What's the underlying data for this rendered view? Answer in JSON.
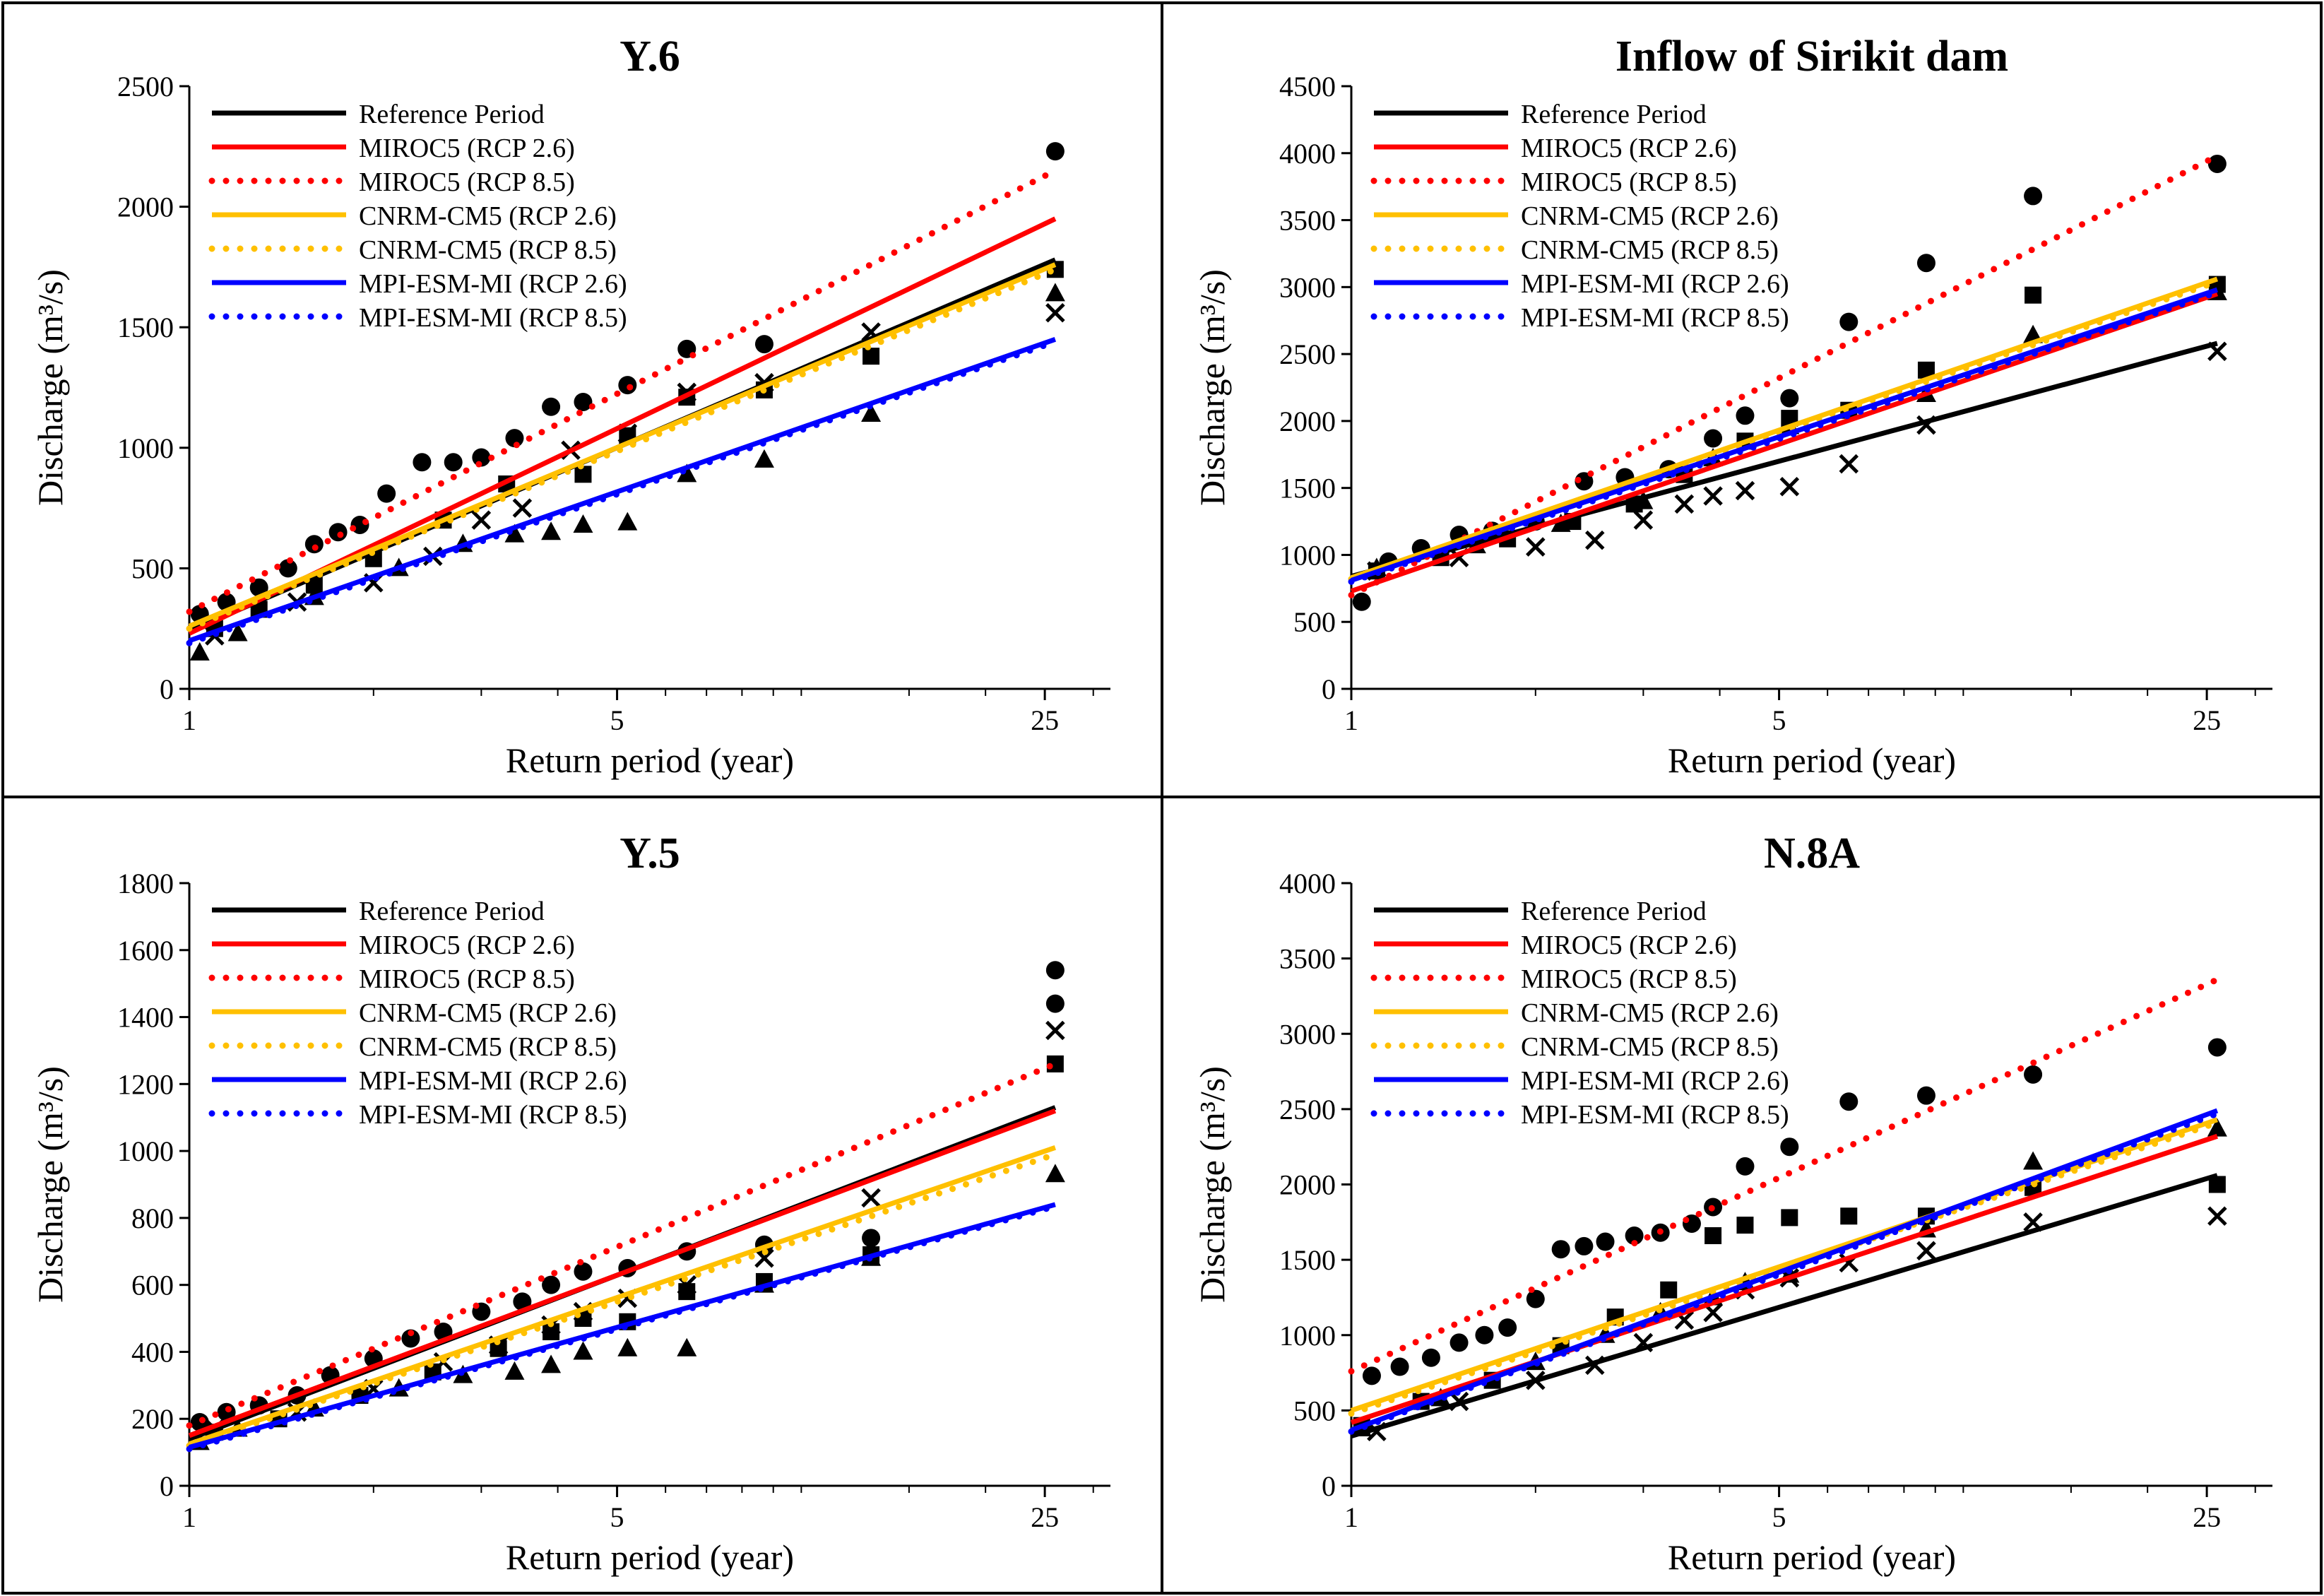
{
  "palette": {
    "reference": "#000000",
    "miroc5": "#ff0000",
    "cnrm": "#ffc000",
    "mpi": "#0000ff",
    "points": "#000000"
  },
  "legend_entries": [
    {
      "label": "Reference Period",
      "color": "#000000",
      "dotted": false
    },
    {
      "label": "MIROC5 (RCP 2.6)",
      "color": "#ff0000",
      "dotted": false
    },
    {
      "label": "MIROC5 (RCP 8.5)",
      "color": "#ff0000",
      "dotted": true
    },
    {
      "label": "CNRM-CM5 (RCP 2.6)",
      "color": "#ffc000",
      "dotted": false
    },
    {
      "label": "CNRM-CM5 (RCP 8.5)",
      "color": "#ffc000",
      "dotted": true
    },
    {
      "label": "MPI-ESM-MI (RCP 2.6)",
      "color": "#0000ff",
      "dotted": false
    },
    {
      "label": "MPI-ESM-MI (RCP 8.5)",
      "color": "#0000ff",
      "dotted": true
    }
  ],
  "chart_data": [
    {
      "type": "scatter",
      "title": "Y.6",
      "xlabel": "Return period (year)",
      "ylabel": "Discharge (m³/s)",
      "x_scale": "log",
      "x_ticks": [
        1,
        5,
        25
      ],
      "xlim": [
        1,
        32
      ],
      "ylim": [
        0,
        2500
      ],
      "y_ticks": [
        0,
        500,
        1000,
        1500,
        2000,
        2500
      ],
      "legend": "top-left",
      "grid": false,
      "trend_lines": [
        {
          "name": "Reference Period",
          "x": [
            1,
            26
          ],
          "y": [
            240,
            1780
          ]
        },
        {
          "name": "MIROC5 (RCP 2.6)",
          "x": [
            1,
            26
          ],
          "y": [
            230,
            1950
          ]
        },
        {
          "name": "MIROC5 (RCP 8.5)",
          "x": [
            1,
            26
          ],
          "y": [
            320,
            2150
          ]
        },
        {
          "name": "CNRM-CM5 (RCP 2.6)",
          "x": [
            1,
            26
          ],
          "y": [
            260,
            1760
          ]
        },
        {
          "name": "CNRM-CM5 (RCP 8.5)",
          "x": [
            1,
            26
          ],
          "y": [
            250,
            1740
          ]
        },
        {
          "name": "MPI-ESM-MI (RCP 2.6)",
          "x": [
            1,
            26
          ],
          "y": [
            200,
            1450
          ]
        },
        {
          "name": "MPI-ESM-MI (RCP 8.5)",
          "x": [
            1,
            26
          ],
          "y": [
            190,
            1440
          ]
        }
      ],
      "observations": [
        {
          "marker": "circle",
          "x": [
            1.04,
            1.15,
            1.3,
            1.45,
            1.6,
            1.75,
            1.9,
            2.1,
            2.4,
            2.7,
            3.0,
            3.4,
            3.9,
            4.4,
            5.2,
            6.5,
            8.7,
            26
          ],
          "y": [
            310,
            360,
            420,
            500,
            600,
            650,
            680,
            810,
            940,
            940,
            960,
            1040,
            1170,
            1190,
            1260,
            1410,
            1430,
            2230
          ]
        },
        {
          "marker": "square",
          "x": [
            1.1,
            1.3,
            1.6,
            2.0,
            2.6,
            3.3,
            4.4,
            5.2,
            6.5,
            8.7,
            13,
            26
          ],
          "y": [
            250,
            330,
            430,
            540,
            700,
            850,
            890,
            1050,
            1210,
            1240,
            1380,
            1740
          ]
        },
        {
          "marker": "triangle",
          "x": [
            1.04,
            1.2,
            1.6,
            2.2,
            2.8,
            3.4,
            3.9,
            4.4,
            5.2,
            6.5,
            8.7,
            13,
            26
          ],
          "y": [
            150,
            230,
            380,
            500,
            600,
            640,
            650,
            680,
            690,
            890,
            950,
            1140,
            1640
          ]
        },
        {
          "marker": "cross",
          "x": [
            1.1,
            1.5,
            2.0,
            2.5,
            3.0,
            3.5,
            4.2,
            5.2,
            6.5,
            8.7,
            13,
            26
          ],
          "y": [
            220,
            360,
            440,
            550,
            700,
            750,
            990,
            1060,
            1230,
            1270,
            1480,
            1560
          ]
        }
      ]
    },
    {
      "type": "scatter",
      "title": "Inflow of Sirikit dam",
      "xlabel": "Return period (year)",
      "ylabel": "Discharge (m³/s)",
      "x_scale": "log",
      "x_ticks": [
        1,
        5,
        25
      ],
      "xlim": [
        1,
        32
      ],
      "ylim": [
        0,
        4500
      ],
      "y_ticks": [
        0,
        500,
        1000,
        1500,
        2000,
        2500,
        3000,
        3500,
        4000,
        4500
      ],
      "legend": "top-left",
      "grid": false,
      "trend_lines": [
        {
          "name": "Reference Period",
          "x": [
            1,
            26
          ],
          "y": [
            840,
            2580
          ]
        },
        {
          "name": "MIROC5 (RCP 2.6)",
          "x": [
            1,
            26
          ],
          "y": [
            730,
            2950
          ]
        },
        {
          "name": "MIROC5 (RCP 8.5)",
          "x": [
            1,
            26
          ],
          "y": [
            700,
            3980
          ]
        },
        {
          "name": "CNRM-CM5 (RCP 2.6)",
          "x": [
            1,
            26
          ],
          "y": [
            830,
            3060
          ]
        },
        {
          "name": "CNRM-CM5 (RCP 8.5)",
          "x": [
            1,
            26
          ],
          "y": [
            820,
            3040
          ]
        },
        {
          "name": "MPI-ESM-MI (RCP 2.6)",
          "x": [
            1,
            26
          ],
          "y": [
            810,
            2980
          ]
        },
        {
          "name": "MPI-ESM-MI (RCP 8.5)",
          "x": [
            1,
            26
          ],
          "y": [
            800,
            2960
          ]
        }
      ],
      "observations": [
        {
          "marker": "circle",
          "x": [
            1.04,
            1.15,
            1.3,
            1.5,
            1.7,
            2.0,
            2.4,
            2.8,
            3.3,
            3.9,
            4.4,
            5.2,
            6.5,
            8.7,
            13,
            26
          ],
          "y": [
            650,
            950,
            1050,
            1150,
            1180,
            1250,
            1550,
            1580,
            1640,
            1870,
            2040,
            2170,
            2740,
            3180,
            3680,
            3920
          ]
        },
        {
          "marker": "square",
          "x": [
            1.1,
            1.4,
            1.8,
            2.3,
            2.9,
            3.5,
            4.4,
            5.2,
            6.5,
            8.7,
            13,
            26
          ],
          "y": [
            880,
            980,
            1120,
            1250,
            1380,
            1600,
            1850,
            2020,
            2080,
            2380,
            2940,
            3020
          ]
        },
        {
          "marker": "triangle",
          "x": [
            1.1,
            1.6,
            2.2,
            3.0,
            3.9,
            5.2,
            8.7,
            13,
            26
          ],
          "y": [
            900,
            1070,
            1230,
            1400,
            1720,
            1960,
            2200,
            2640,
            2960
          ]
        },
        {
          "marker": "cross",
          "x": [
            1.1,
            1.5,
            2.0,
            2.5,
            3.0,
            3.5,
            3.9,
            4.4,
            5.2,
            6.5,
            8.7,
            26
          ],
          "y": [
            880,
            980,
            1060,
            1110,
            1260,
            1380,
            1440,
            1480,
            1510,
            1680,
            1970,
            2520
          ]
        }
      ]
    },
    {
      "type": "scatter",
      "title": "Y.5",
      "xlabel": "Return period (year)",
      "ylabel": "Discharge (m³/s)",
      "x_scale": "log",
      "x_ticks": [
        1,
        5,
        25
      ],
      "xlim": [
        1,
        32
      ],
      "ylim": [
        0,
        1800
      ],
      "y_ticks": [
        0,
        200,
        400,
        600,
        800,
        1000,
        1200,
        1400,
        1600,
        1800
      ],
      "legend": "top-left",
      "grid": false,
      "trend_lines": [
        {
          "name": "Reference Period",
          "x": [
            1,
            26
          ],
          "y": [
            140,
            1130
          ]
        },
        {
          "name": "MIROC5 (RCP 2.6)",
          "x": [
            1,
            26
          ],
          "y": [
            150,
            1120
          ]
        },
        {
          "name": "MIROC5 (RCP 8.5)",
          "x": [
            1,
            26
          ],
          "y": [
            180,
            1260
          ]
        },
        {
          "name": "CNRM-CM5 (RCP 2.6)",
          "x": [
            1,
            26
          ],
          "y": [
            125,
            1010
          ]
        },
        {
          "name": "CNRM-CM5 (RCP 8.5)",
          "x": [
            1,
            26
          ],
          "y": [
            120,
            990
          ]
        },
        {
          "name": "MPI-ESM-MI (RCP 2.6)",
          "x": [
            1,
            26
          ],
          "y": [
            115,
            840
          ]
        },
        {
          "name": "MPI-ESM-MI (RCP 8.5)",
          "x": [
            1,
            26
          ],
          "y": [
            110,
            835
          ]
        }
      ],
      "observations": [
        {
          "marker": "circle",
          "x": [
            1.04,
            1.15,
            1.3,
            1.5,
            1.7,
            2.0,
            2.3,
            2.6,
            3.0,
            3.5,
            3.9,
            4.4,
            5.2,
            6.5,
            8.7,
            13,
            26,
            26
          ],
          "y": [
            190,
            220,
            240,
            270,
            330,
            380,
            440,
            460,
            520,
            550,
            600,
            640,
            650,
            700,
            720,
            740,
            1440,
            1540
          ]
        },
        {
          "marker": "square",
          "x": [
            1.1,
            1.4,
            1.9,
            2.5,
            3.2,
            3.9,
            4.4,
            5.2,
            6.5,
            8.7,
            13,
            26
          ],
          "y": [
            160,
            200,
            270,
            340,
            410,
            460,
            500,
            490,
            580,
            610,
            690,
            1260
          ]
        },
        {
          "marker": "triangle",
          "x": [
            1.04,
            1.2,
            1.6,
            2.2,
            2.8,
            3.4,
            3.9,
            4.4,
            5.2,
            6.5,
            8.7,
            13,
            26
          ],
          "y": [
            130,
            170,
            230,
            290,
            330,
            340,
            360,
            400,
            410,
            410,
            600,
            680,
            930
          ]
        },
        {
          "marker": "cross",
          "x": [
            1.1,
            1.5,
            2.0,
            2.6,
            3.2,
            3.9,
            4.4,
            5.2,
            6.5,
            8.7,
            13,
            26
          ],
          "y": [
            170,
            220,
            290,
            370,
            420,
            480,
            520,
            560,
            600,
            680,
            860,
            1360
          ]
        }
      ]
    },
    {
      "type": "scatter",
      "title": "N.8A",
      "xlabel": "Return period (year)",
      "ylabel": "Discharge (m³/s)",
      "x_scale": "log",
      "x_ticks": [
        1,
        5,
        25
      ],
      "xlim": [
        1,
        32
      ],
      "ylim": [
        0,
        4000
      ],
      "y_ticks": [
        0,
        500,
        1000,
        1500,
        2000,
        2500,
        3000,
        3500,
        4000
      ],
      "legend": "top-left",
      "grid": false,
      "trend_lines": [
        {
          "name": "Reference Period",
          "x": [
            1,
            26
          ],
          "y": [
            330,
            2060
          ]
        },
        {
          "name": "MIROC5 (RCP 2.6)",
          "x": [
            1,
            26
          ],
          "y": [
            420,
            2320
          ]
        },
        {
          "name": "MIROC5 (RCP 8.5)",
          "x": [
            1,
            26
          ],
          "y": [
            760,
            3360
          ]
        },
        {
          "name": "CNRM-CM5 (RCP 2.6)",
          "x": [
            1,
            26
          ],
          "y": [
            500,
            2430
          ]
        },
        {
          "name": "CNRM-CM5 (RCP 8.5)",
          "x": [
            1,
            26
          ],
          "y": [
            480,
            2410
          ]
        },
        {
          "name": "MPI-ESM-MI (RCP 2.6)",
          "x": [
            1,
            26
          ],
          "y": [
            370,
            2490
          ]
        },
        {
          "name": "MPI-ESM-MI (RCP 8.5)",
          "x": [
            1,
            26
          ],
          "y": [
            360,
            2470
          ]
        }
      ],
      "observations": [
        {
          "marker": "circle",
          "x": [
            1.08,
            1.2,
            1.35,
            1.5,
            1.65,
            1.8,
            2.0,
            2.2,
            2.4,
            2.6,
            2.9,
            3.2,
            3.6,
            3.9,
            4.4,
            5.2,
            6.5,
            8.7,
            13,
            26
          ],
          "y": [
            730,
            790,
            850,
            950,
            1000,
            1050,
            1240,
            1570,
            1590,
            1620,
            1660,
            1680,
            1740,
            1850,
            2120,
            2250,
            2550,
            2590,
            2730,
            2910
          ]
        },
        {
          "marker": "square",
          "x": [
            1.04,
            1.3,
            1.7,
            2.2,
            2.7,
            3.3,
            3.9,
            4.4,
            5.2,
            6.5,
            8.7,
            13,
            26
          ],
          "y": [
            400,
            560,
            700,
            930,
            1120,
            1300,
            1660,
            1730,
            1780,
            1790,
            1790,
            1980,
            2000
          ]
        },
        {
          "marker": "triangle",
          "x": [
            1.04,
            1.4,
            2.0,
            2.6,
            3.2,
            3.9,
            4.4,
            5.2,
            8.7,
            13,
            26
          ],
          "y": [
            380,
            580,
            820,
            1000,
            1150,
            1250,
            1350,
            1400,
            1700,
            2150,
            2370
          ]
        },
        {
          "marker": "cross",
          "x": [
            1.1,
            1.5,
            2.0,
            2.5,
            3.0,
            3.5,
            3.9,
            4.4,
            5.2,
            6.5,
            8.7,
            13,
            26
          ],
          "y": [
            360,
            560,
            700,
            800,
            950,
            1100,
            1150,
            1300,
            1380,
            1480,
            1560,
            1750,
            1790
          ]
        }
      ]
    }
  ]
}
